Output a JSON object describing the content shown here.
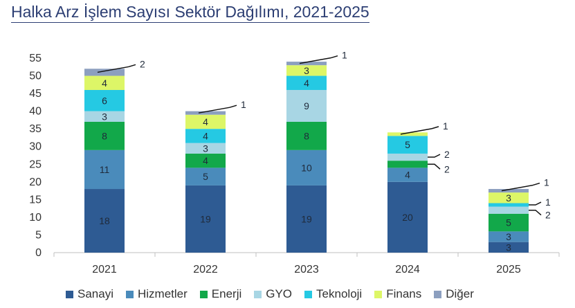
{
  "title": "Halka Arz İşlem Sayısı Sektör Dağılımı, 2021-2025",
  "chart_data": {
    "type": "bar",
    "stacked": true,
    "title": "Halka Arz İşlem Sayısı Sektör Dağılımı, 2021-2025",
    "categories": [
      "2021",
      "2022",
      "2023",
      "2024",
      "2025"
    ],
    "ylim": [
      0,
      55
    ],
    "yticks": [
      0,
      5,
      10,
      15,
      20,
      25,
      30,
      35,
      40,
      45,
      50,
      55
    ],
    "series": [
      {
        "name": "Sanayi",
        "color": "#2e5b93",
        "values": [
          18,
          19,
          19,
          20,
          3
        ]
      },
      {
        "name": "Hizmetler",
        "color": "#4a8bbb",
        "values": [
          11,
          5,
          10,
          4,
          3
        ]
      },
      {
        "name": "Enerji",
        "color": "#12a84a",
        "values": [
          8,
          4,
          8,
          2,
          5
        ]
      },
      {
        "name": "GYO",
        "color": "#a8d6e4",
        "values": [
          3,
          3,
          9,
          2,
          2
        ]
      },
      {
        "name": "Teknoloji",
        "color": "#25c9e3",
        "values": [
          6,
          4,
          4,
          5,
          1
        ]
      },
      {
        "name": "Finans",
        "color": "#ddf667",
        "values": [
          4,
          4,
          3,
          1,
          3
        ]
      },
      {
        "name": "Diğer",
        "color": "#8c9fbf",
        "values": [
          2,
          1,
          1,
          0,
          1
        ]
      }
    ],
    "legend_position": "bottom"
  }
}
